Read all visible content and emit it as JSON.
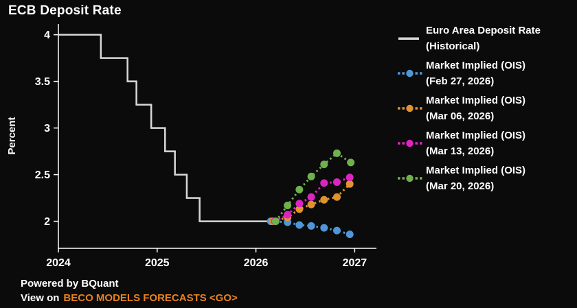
{
  "title": "ECB Deposit Rate",
  "footer": {
    "powered_by": "Powered by BQuant",
    "view_on": "View on",
    "link_text": "BECO MODELS FORECASTS <GO>"
  },
  "colors": {
    "background": "#0b0b0b",
    "axis_and_text": "#ffffff",
    "historical_line": "#d8d8d8",
    "footer_link": "#e8821f"
  },
  "chart_data": {
    "type": "line",
    "title": "ECB Deposit Rate",
    "xlabel": "",
    "ylabel": "Percent",
    "grid": false,
    "legend_position": "right",
    "xlim": [
      2024,
      2027.22
    ],
    "ylim": [
      1.71,
      4.115
    ],
    "x_ticks": {
      "values": [
        2024,
        2025,
        2026,
        2027
      ],
      "labels": [
        "2024",
        "2025",
        "2026",
        "2027"
      ]
    },
    "y_ticks": {
      "values": [
        2,
        2.5,
        3,
        3.5,
        4
      ],
      "labels": [
        "2",
        "2.5",
        "3",
        "3.5",
        "4"
      ]
    },
    "series": [
      {
        "name": "Euro Area Deposit Rate (Historical)",
        "legend_lines": [
          "Euro Area Deposit Rate",
          "(Historical)"
        ],
        "style": "step",
        "color": "#d8d8d8",
        "x": [
          2024.0,
          2024.43,
          2024.7,
          2024.79,
          2024.94,
          2025.08,
          2025.18,
          2025.3,
          2025.43,
          2026.19
        ],
        "y": [
          4.0,
          3.75,
          3.5,
          3.25,
          3.0,
          2.75,
          2.5,
          2.25,
          2.0,
          2.0
        ]
      },
      {
        "name": "Market Implied (OIS) (Feb 27, 2026)",
        "legend_lines": [
          "Market Implied (OIS)",
          "(Feb 27, 2026)"
        ],
        "style": "dotted_markers",
        "color": "#4e96d8",
        "x": [
          2026.15,
          2026.32,
          2026.44,
          2026.56,
          2026.69,
          2026.82,
          2026.95
        ],
        "y": [
          2.0,
          1.99,
          1.96,
          1.95,
          1.93,
          1.9,
          1.86
        ]
      },
      {
        "name": "Market Implied (OIS) (Mar 06, 2026)",
        "legend_lines": [
          "Market Implied (OIS)",
          "(Mar 06, 2026)"
        ],
        "style": "dotted_markers",
        "color": "#e0922f",
        "x": [
          2026.17,
          2026.32,
          2026.44,
          2026.56,
          2026.69,
          2026.82,
          2026.95
        ],
        "y": [
          2.0,
          2.04,
          2.13,
          2.18,
          2.23,
          2.26,
          2.4
        ]
      },
      {
        "name": "Market Implied (OIS) (Mar 13, 2026)",
        "legend_lines": [
          "Market Implied (OIS)",
          "(Mar 13, 2026)"
        ],
        "style": "dotted_markers",
        "color": "#dc25c0",
        "x": [
          2026.19,
          2026.32,
          2026.44,
          2026.56,
          2026.69,
          2026.82,
          2026.95
        ],
        "y": [
          2.0,
          2.07,
          2.19,
          2.26,
          2.41,
          2.42,
          2.47
        ]
      },
      {
        "name": "Market Implied (OIS) (Mar 20, 2026)",
        "legend_lines": [
          "Market Implied (OIS)",
          "(Mar 20, 2026)"
        ],
        "style": "dotted_markers",
        "color": "#70b04e",
        "x": [
          2026.2,
          2026.32,
          2026.44,
          2026.56,
          2026.69,
          2026.82,
          2026.96
        ],
        "y": [
          2.0,
          2.17,
          2.34,
          2.48,
          2.61,
          2.73,
          2.63
        ]
      }
    ]
  }
}
